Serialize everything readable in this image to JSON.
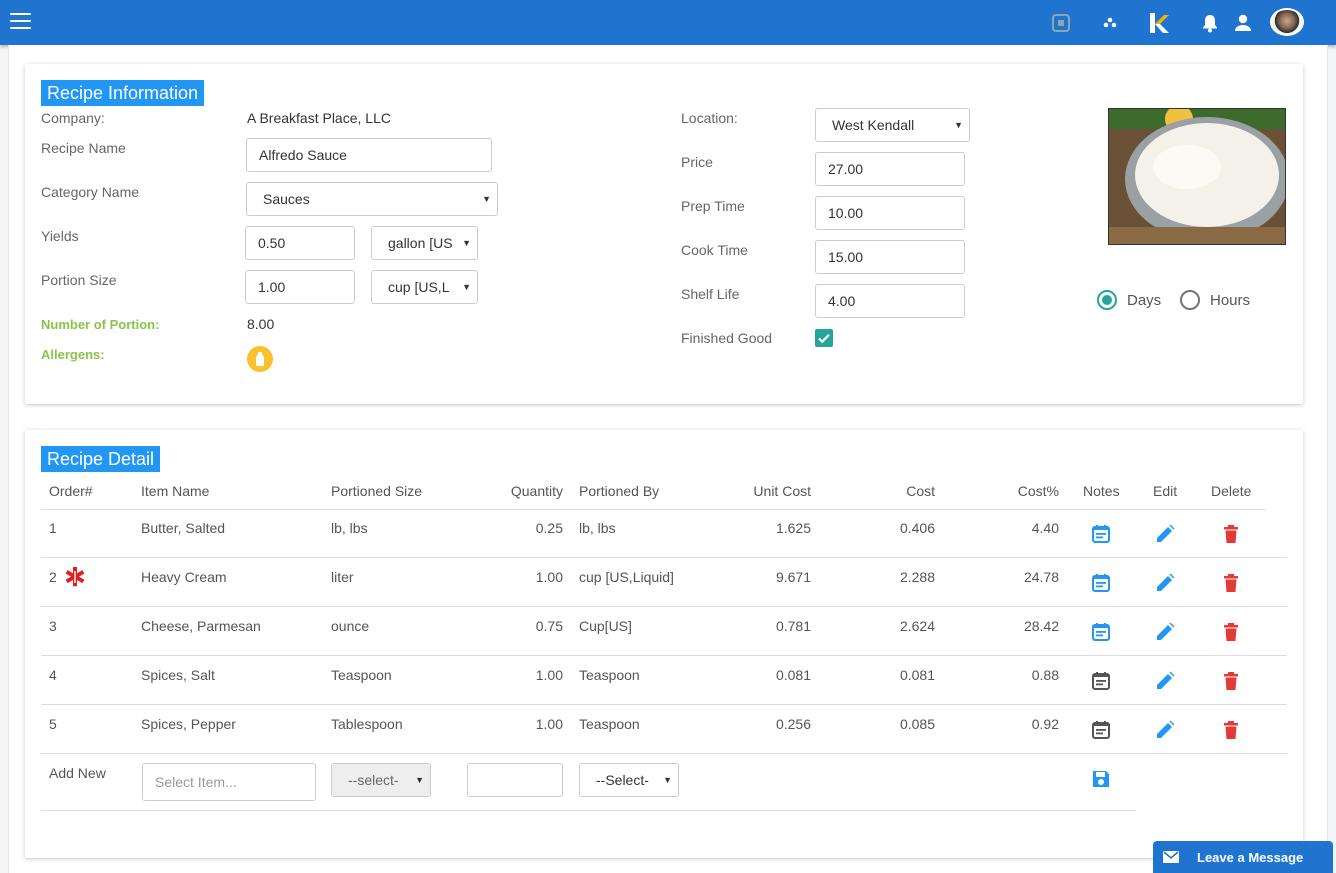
{
  "header": {
    "menu_icon": "hamburger-icon",
    "icons": [
      "square-icon",
      "soccer-ball-icon",
      "k-logo-icon",
      "bell-icon",
      "user-icon",
      "avatar"
    ]
  },
  "recipe_info": {
    "title": "Recipe Information",
    "company_label": "Company:",
    "company_value": "A Breakfast Place, LLC",
    "recipe_name_label": "Recipe Name",
    "recipe_name_value": "Alfredo Sauce",
    "category_label": "Category Name",
    "category_value": "Sauces",
    "yields_label": "Yields",
    "yields_value": "0.50",
    "yields_unit": "gallon [US",
    "portion_size_label": "Portion Size",
    "portion_size_value": "1.00",
    "portion_size_unit": "cup [US,L",
    "number_of_portion_label": "Number of Portion:",
    "number_of_portion_value": "8.00",
    "allergens_label": "Allergens:",
    "location_label": "Location:",
    "location_value": "West Kendall",
    "price_label": "Price",
    "price_value": "27.00",
    "prep_time_label": "Prep Time",
    "prep_time_value": "10.00",
    "cook_time_label": "Cook Time",
    "cook_time_value": "15.00",
    "shelf_life_label": "Shelf Life",
    "shelf_life_value": "4.00",
    "finished_good_label": "Finished Good",
    "finished_good_checked": true,
    "unit_days": "Days",
    "unit_hours": "Hours",
    "selected_unit": "Days"
  },
  "recipe_detail": {
    "title": "Recipe Detail",
    "columns": [
      "Order#",
      "Item Name",
      "Portioned Size",
      "Quantity",
      "Portioned By",
      "Unit Cost",
      "Cost",
      "Cost%",
      "Notes",
      "Edit",
      "Delete"
    ],
    "rows": [
      {
        "order": "1",
        "item": "Butter, Salted",
        "portioned_size": "lb, lbs",
        "quantity": "0.25",
        "portioned_by": "lb, lbs",
        "unit_cost": "1.625",
        "cost": "0.406",
        "cost_pct": "4.40",
        "notes_color": "#2196f3",
        "allergen": false
      },
      {
        "order": "2",
        "item": "Heavy Cream",
        "portioned_size": "liter",
        "quantity": "1.00",
        "portioned_by": "cup [US,Liquid]",
        "unit_cost": "9.671",
        "cost": "2.288",
        "cost_pct": "24.78",
        "notes_color": "#2196f3",
        "allergen": true
      },
      {
        "order": "3",
        "item": "Cheese, Parmesan",
        "portioned_size": "ounce",
        "quantity": "0.75",
        "portioned_by": "Cup[US]",
        "unit_cost": "0.781",
        "cost": "2.624",
        "cost_pct": "28.42",
        "notes_color": "#2196f3",
        "allergen": false
      },
      {
        "order": "4",
        "item": "Spices, Salt",
        "portioned_size": "Teaspoon",
        "quantity": "1.00",
        "portioned_by": "Teaspoon",
        "unit_cost": "0.081",
        "cost": "0.081",
        "cost_pct": "0.88",
        "notes_color": "#555555",
        "allergen": false
      },
      {
        "order": "5",
        "item": "Spices, Pepper",
        "portioned_size": "Tablespoon",
        "quantity": "1.00",
        "portioned_by": "Teaspoon",
        "unit_cost": "0.256",
        "cost": "0.085",
        "cost_pct": "0.92",
        "notes_color": "#555555",
        "allergen": false
      }
    ],
    "add_new_label": "Add New",
    "select_item_placeholder": "Select Item...",
    "portioned_size_select": "--select-",
    "portioned_by_select": "--Select-"
  },
  "colors": {
    "primary": "#1f74d0",
    "accent": "#2196f3",
    "teal": "#26a69a",
    "danger": "#e53935",
    "green": "#8bc34a"
  },
  "leave_message": "Leave a Message"
}
